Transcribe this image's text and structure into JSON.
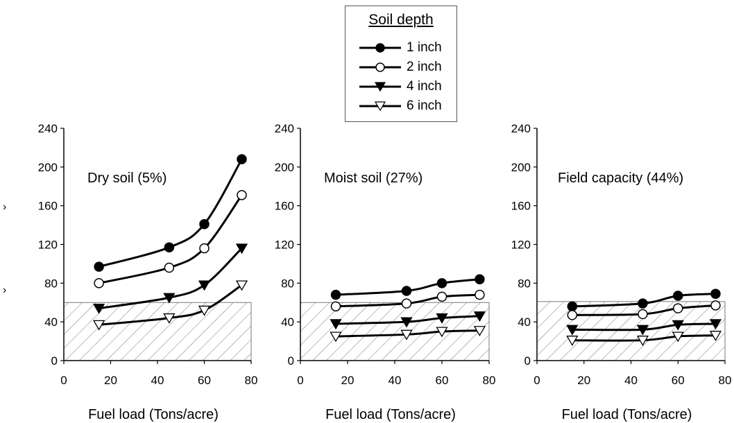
{
  "legend": {
    "title": "Soil depth",
    "items": [
      {
        "label": "1 inch",
        "marker": "circle-filled"
      },
      {
        "label": "2 inch",
        "marker": "circle-open"
      },
      {
        "label": "4 inch",
        "marker": "triangle-down-filled"
      },
      {
        "label": "6 inch",
        "marker": "triangle-down-open"
      }
    ]
  },
  "edge_marks": [
    "›",
    "›"
  ],
  "chart_data": [
    {
      "type": "line",
      "title": "Dry soil (5%)",
      "xlabel": "Fuel load (Tons/acre)",
      "ylabel": "",
      "xlim": [
        0,
        80
      ],
      "ylim": [
        0,
        240
      ],
      "xticks": [
        "0",
        "20",
        "40",
        "60",
        "80"
      ],
      "yticks": [
        "0",
        "40",
        "80",
        "120",
        "160",
        "200",
        "240"
      ],
      "hatched_region_y": 60,
      "x": [
        15,
        45,
        60,
        76
      ],
      "series": [
        {
          "name": "1 inch",
          "values": [
            97,
            117,
            141,
            208
          ]
        },
        {
          "name": "2 inch",
          "values": [
            80,
            96,
            116,
            171
          ]
        },
        {
          "name": "4 inch",
          "values": [
            54,
            65,
            78,
            116
          ]
        },
        {
          "name": "6 inch",
          "values": [
            37,
            44,
            52,
            78
          ]
        }
      ]
    },
    {
      "type": "line",
      "title": "Moist soil (27%)",
      "xlabel": "Fuel load (Tons/acre)",
      "ylabel": "",
      "xlim": [
        0,
        80
      ],
      "ylim": [
        0,
        240
      ],
      "xticks": [
        "0",
        "20",
        "40",
        "60",
        "80"
      ],
      "yticks": [
        "0",
        "40",
        "80",
        "120",
        "160",
        "200",
        "240"
      ],
      "hatched_region_y": 60,
      "x": [
        15,
        45,
        60,
        76
      ],
      "series": [
        {
          "name": "1 inch",
          "values": [
            68,
            72,
            80,
            84
          ]
        },
        {
          "name": "2 inch",
          "values": [
            56,
            59,
            66,
            68
          ]
        },
        {
          "name": "4 inch",
          "values": [
            38,
            40,
            44,
            46
          ]
        },
        {
          "name": "6 inch",
          "values": [
            25,
            27,
            30,
            31
          ]
        }
      ]
    },
    {
      "type": "line",
      "title": "Field capacity (44%)",
      "xlabel": "Fuel load (Tons/acre)",
      "ylabel": "",
      "xlim": [
        0,
        80
      ],
      "ylim": [
        0,
        240
      ],
      "xticks": [
        "0",
        "20",
        "40",
        "60",
        "80"
      ],
      "yticks": [
        "0",
        "40",
        "80",
        "120",
        "160",
        "200",
        "240"
      ],
      "hatched_region_y": 61,
      "x": [
        15,
        45,
        60,
        76
      ],
      "series": [
        {
          "name": "1 inch",
          "values": [
            56,
            59,
            67,
            69
          ]
        },
        {
          "name": "2 inch",
          "values": [
            47,
            48,
            54,
            57
          ]
        },
        {
          "name": "4 inch",
          "values": [
            32,
            32,
            37,
            38
          ]
        },
        {
          "name": "6 inch",
          "values": [
            21,
            21,
            25,
            26
          ]
        }
      ]
    }
  ]
}
